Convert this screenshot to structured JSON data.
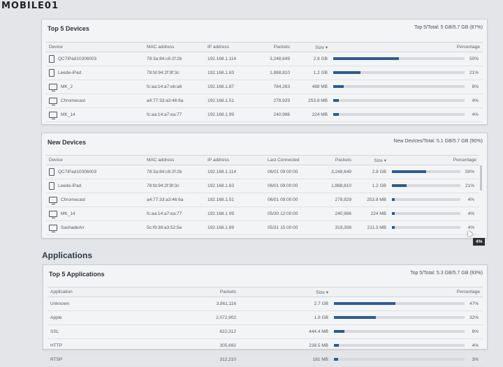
{
  "watermark": "MOBILE01",
  "top_devices": {
    "title": "Top 5 Devices",
    "summary": "Top 5/Total: 5 GB/5.7 GB (87%)",
    "columns": [
      "Device",
      "MAC address",
      "IP address",
      "Packets",
      "Size ▾",
      "Percentage"
    ],
    "rows": [
      {
        "icon": "tablet-icon",
        "device": "QC7iPad10306003",
        "mac": "78:3a:84:c6:2f:2b",
        "ip": "192.168.1.114",
        "packets": "3,248,649",
        "size": "2.8 GB",
        "pct": "50%",
        "fraction": 0.5
      },
      {
        "icon": "tablet-icon",
        "device": "Leede-iPad",
        "mac": "78:fd:94:2f:9f:3c",
        "ip": "192.168.1.63",
        "packets": "1,888,810",
        "size": "1.2 GB",
        "pct": "21%",
        "fraction": 0.21
      },
      {
        "icon": "monitor-icon",
        "device": "MK_2",
        "mac": "fc:aa:14:a7:eb:a6",
        "ip": "192.168.1.87",
        "packets": "784,263",
        "size": "488 MB",
        "pct": "8%",
        "fraction": 0.08
      },
      {
        "icon": "monitor-icon",
        "device": "Chromecast",
        "mac": "a4:77:33:a3:46:6a",
        "ip": "192.168.1.51",
        "packets": "278,929",
        "size": "253.8 MB",
        "pct": "4%",
        "fraction": 0.04
      },
      {
        "icon": "monitor-icon",
        "device": "MK_14",
        "mac": "fc:aa:14:a7:ea:77",
        "ip": "192.168.1.99",
        "packets": "240,986",
        "size": "224 MB",
        "pct": "4%",
        "fraction": 0.04
      }
    ]
  },
  "new_devices": {
    "title": "New Devices",
    "summary": "New Devices/Total: 5.1 GB/5.7 GB (90%)",
    "columns": [
      "Device",
      "MAC address",
      "IP address",
      "Last Connected",
      "Packets",
      "Size ▾",
      "Percentage"
    ],
    "rows": [
      {
        "icon": "tablet-icon",
        "device": "QC7iPad10306003",
        "mac": "78:3a:84:c6:2f:2b",
        "ip": "192.168.1.114",
        "last": "06/01 09:00:00",
        "packets": "3,248,649",
        "size": "2.8 GB",
        "pct": "50%",
        "fraction": 0.5
      },
      {
        "icon": "tablet-icon",
        "device": "Leede-iPad",
        "mac": "78:fd:94:2f:9f:3c",
        "ip": "192.168.1.63",
        "last": "06/01 09:00:00",
        "packets": "1,888,810",
        "size": "1.2 GB",
        "pct": "21%",
        "fraction": 0.21
      },
      {
        "icon": "monitor-icon",
        "device": "Chromecast",
        "mac": "a4:77:33:a3:46:6a",
        "ip": "192.168.1.51",
        "last": "06/01 09:00:00",
        "packets": "278,929",
        "size": "253.8 MB",
        "pct": "4%",
        "fraction": 0.04
      },
      {
        "icon": "monitor-icon",
        "device": "MK_14",
        "mac": "fc:aa:14:a7:ea:77",
        "ip": "192.168.1.99",
        "last": "05/30 12:00:00",
        "packets": "240,986",
        "size": "224 MB",
        "pct": "4%",
        "fraction": 0.04
      },
      {
        "icon": "monitor-icon",
        "device": "SashadeAir",
        "mac": "5c:f9:38:a3:52:5e",
        "ip": "192.168.1.69",
        "last": "05/31 15:00:00",
        "packets": "319,308",
        "size": "211.3 MB",
        "pct": "4%",
        "fraction": 0.04
      }
    ]
  },
  "tooltip": "4%",
  "applications_heading": "Applications",
  "top_apps": {
    "title": "Top 5 Applications",
    "summary": "Top 5/Total: 5.3 GB/5.7 GB (93%)",
    "columns": [
      "Application",
      "Packets",
      "Size ▾",
      "Percentage"
    ],
    "rows": [
      {
        "app": "Unknown",
        "packets": "3,861,116",
        "size": "2.7 GB",
        "pct": "47%",
        "fraction": 0.47
      },
      {
        "app": "Apple",
        "packets": "2,072,902",
        "size": "1.8 GB",
        "pct": "32%",
        "fraction": 0.32
      },
      {
        "app": "SSL",
        "packets": "622,312",
        "size": "444.4 MB",
        "pct": "8%",
        "fraction": 0.08
      },
      {
        "app": "HTTP",
        "packets": "305,692",
        "size": "238.5 MB",
        "pct": "4%",
        "fraction": 0.04
      },
      {
        "app": "RTSP",
        "packets": "312,210",
        "size": "181 MB",
        "pct": "3%",
        "fraction": 0.03
      }
    ]
  },
  "colors": {
    "bar_fill": "#2f5b8f",
    "bar_track": "#d6d9dd"
  }
}
